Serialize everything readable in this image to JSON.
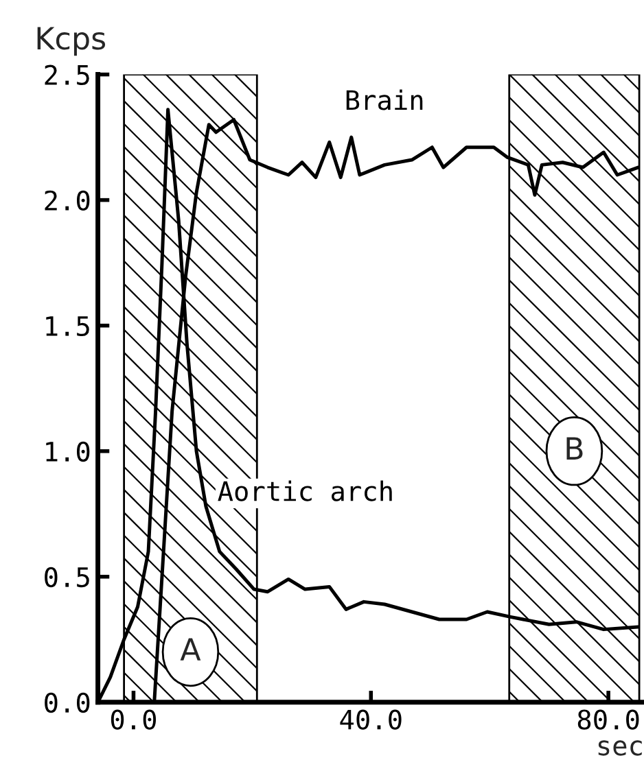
{
  "chart_data": {
    "type": "line",
    "xlabel": "sec",
    "ylabel": "Kcps",
    "xlim": [
      -6,
      86
    ],
    "ylim": [
      0,
      2.5
    ],
    "xticks": [
      {
        "value": 0,
        "label": "0.0"
      },
      {
        "value": 40,
        "label": "40.0"
      },
      {
        "value": 80,
        "label": "80.0"
      }
    ],
    "yticks": [
      {
        "value": 0,
        "label": "0.0"
      },
      {
        "value": 0.5,
        "label": "0.5"
      },
      {
        "value": 1.0,
        "label": "1.0"
      },
      {
        "value": 1.5,
        "label": "1.5"
      },
      {
        "value": 2.0,
        "label": "2.0"
      },
      {
        "value": 2.5,
        "label": "2.5"
      }
    ],
    "grid": false,
    "legend": false,
    "marker": "none",
    "line_style": "solid",
    "series": [
      {
        "name": "Aortic arch",
        "color": "#000000",
        "x": [
          -6,
          -3.9,
          -1.6,
          0.7,
          2.5,
          3.7,
          4.8,
          5.8,
          7.6,
          9.0,
          10.6,
          12.2,
          14.5,
          17.3,
          20.3,
          22.6,
          26.1,
          28.9,
          33.0,
          35.8,
          38.8,
          42.3,
          46.9,
          51.5,
          56.1,
          59.6,
          63.5,
          70.0,
          74.6,
          79.2,
          85
        ],
        "values": [
          0,
          0.1,
          0.25,
          0.38,
          0.6,
          1.15,
          1.75,
          2.36,
          1.92,
          1.43,
          1.0,
          0.78,
          0.6,
          0.53,
          0.45,
          0.44,
          0.49,
          0.45,
          0.46,
          0.37,
          0.4,
          0.39,
          0.36,
          0.33,
          0.33,
          0.36,
          0.34,
          0.31,
          0.32,
          0.29,
          0.3
        ]
      },
      {
        "name": "Brain",
        "color": "#000000",
        "x": [
          3.5,
          4.8,
          6.5,
          8.8,
          10.6,
          12.7,
          13.9,
          16.9,
          19.6,
          22.6,
          26.1,
          28.4,
          30.7,
          33.0,
          34.9,
          36.7,
          38.1,
          42.3,
          46.9,
          50.3,
          52.2,
          56.1,
          60.7,
          63.0,
          66.5,
          67.6,
          68.8,
          72.3,
          75.7,
          79.2,
          81.5,
          85
        ],
        "values": [
          0,
          0.5,
          1.16,
          1.7,
          2.03,
          2.3,
          2.27,
          2.32,
          2.16,
          2.13,
          2.1,
          2.15,
          2.09,
          2.23,
          2.09,
          2.25,
          2.1,
          2.14,
          2.16,
          2.21,
          2.13,
          2.21,
          2.21,
          2.17,
          2.14,
          2.02,
          2.14,
          2.15,
          2.13,
          2.19,
          2.1,
          2.13
        ]
      }
    ],
    "bands": [
      {
        "axis": "x",
        "from": -1.6,
        "to": 20.8,
        "label": "A"
      },
      {
        "axis": "x",
        "from": 63.3,
        "to": 85.2,
        "label": "B"
      }
    ]
  }
}
